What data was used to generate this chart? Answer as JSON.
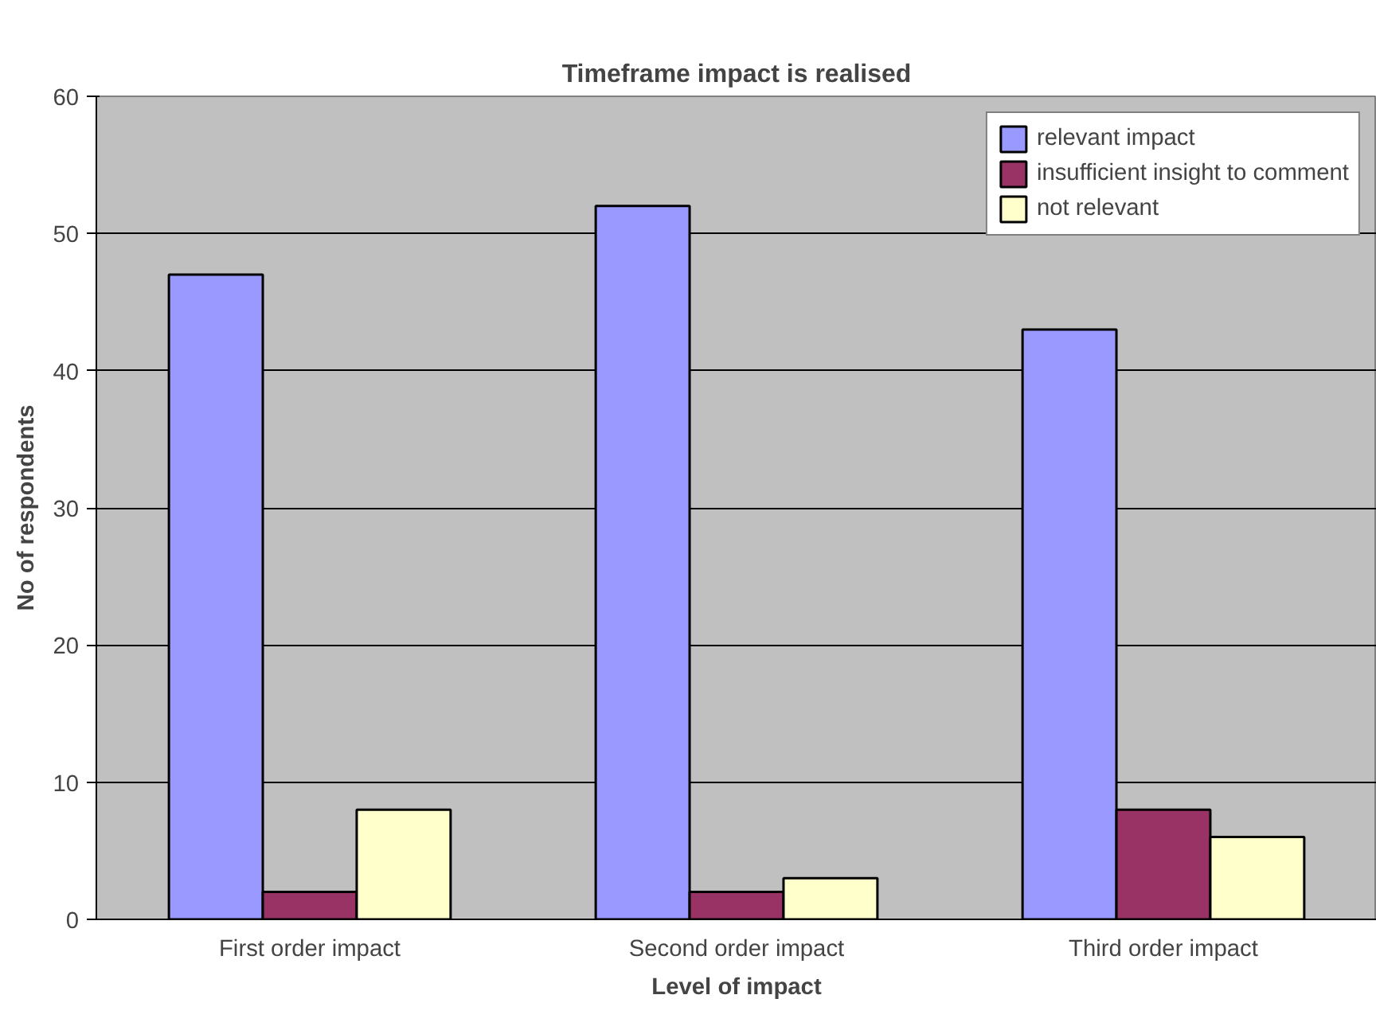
{
  "chart_data": {
    "type": "bar",
    "title": "Timeframe impact is realised",
    "xlabel": "Level of impact",
    "ylabel": "No of respondents",
    "categories": [
      "First order impact",
      "Second order impact",
      "Third order impact"
    ],
    "series": [
      {
        "name": "relevant impact",
        "color": "#9999ff",
        "values": [
          47,
          52,
          43
        ]
      },
      {
        "name": "insufficient insight to comment",
        "color": "#993366",
        "values": [
          2,
          2,
          8
        ]
      },
      {
        "name": "not relevant",
        "color": "#ffffcc",
        "values": [
          8,
          3,
          6
        ]
      }
    ],
    "ylim": [
      0,
      60
    ],
    "yticks": [
      0,
      10,
      20,
      30,
      40,
      50,
      60
    ],
    "grid": "y",
    "legend": "top right"
  }
}
